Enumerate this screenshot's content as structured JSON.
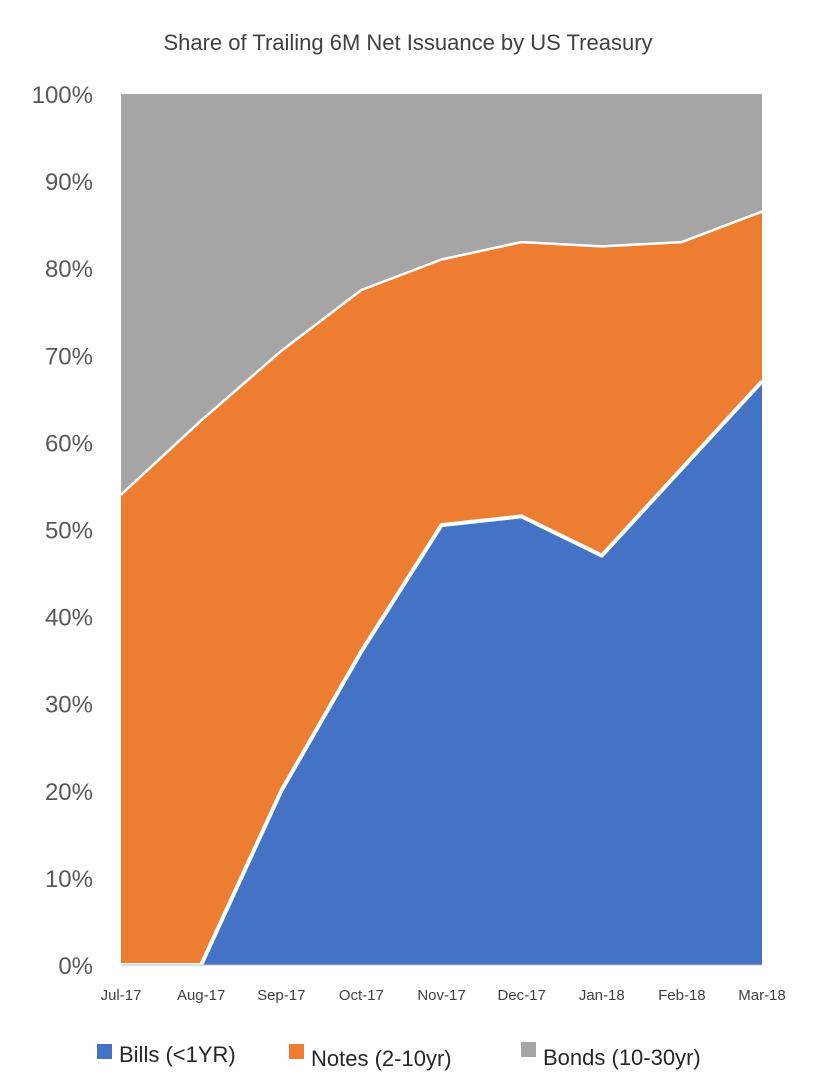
{
  "chart_data": {
    "type": "area",
    "stacked": true,
    "title": "Share of Trailing 6M Net Issuance by US Treasury",
    "xlabel": "",
    "ylabel": "",
    "categories": [
      "Jul-17",
      "Aug-17",
      "Sep-17",
      "Oct-17",
      "Nov-17",
      "Dec-17",
      "Jan-18",
      "Feb-18",
      "Mar-18"
    ],
    "ylim": [
      0,
      1
    ],
    "yticks": [
      "0%",
      "10%",
      "20%",
      "30%",
      "40%",
      "50%",
      "60%",
      "70%",
      "80%",
      "90%",
      "100%"
    ],
    "grid": false,
    "legend": "bottom",
    "series": [
      {
        "name": "Bills (<1YR)",
        "color": "#4472C4",
        "values": [
          0.0,
          0.0,
          0.2,
          0.36,
          0.505,
          0.515,
          0.47,
          0.57,
          0.67
        ]
      },
      {
        "name": "Notes (2-10yr)",
        "color": "#ED7D31",
        "values": [
          0.54,
          0.625,
          0.505,
          0.415,
          0.305,
          0.315,
          0.355,
          0.26,
          0.195
        ]
      },
      {
        "name": "Bonds (10-30yr)",
        "color": "#A5A5A5",
        "values": [
          0.46,
          0.375,
          0.295,
          0.225,
          0.19,
          0.17,
          0.175,
          0.17,
          0.135
        ]
      }
    ]
  }
}
